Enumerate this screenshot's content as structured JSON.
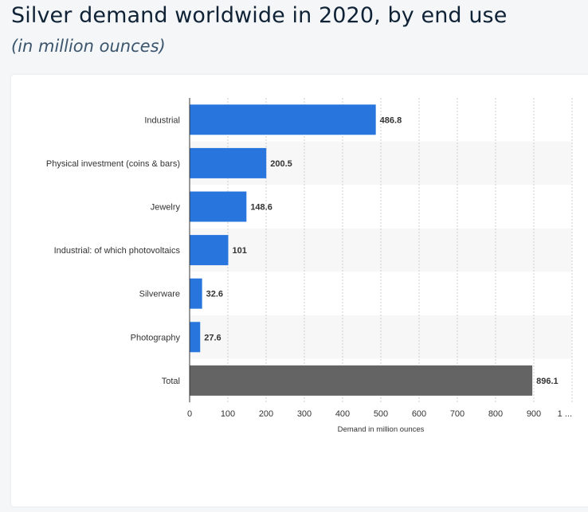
{
  "header": {
    "title": "Silver demand worldwide in 2020, by end use",
    "subtitle": "(in million ounces)"
  },
  "chart_data": {
    "type": "bar",
    "orientation": "horizontal",
    "title": "Silver demand worldwide in 2020, by end use",
    "subtitle": "(in million ounces)",
    "xlabel": "Demand in million ounces",
    "ylabel": "",
    "categories": [
      "Industrial",
      "Physical investment (coins & bars)",
      "Jewelry",
      "Industrial: of which photovoltaics",
      "Silverware",
      "Photography",
      "Total"
    ],
    "values": [
      486.8,
      200.5,
      148.6,
      101,
      32.6,
      27.6,
      896.1
    ],
    "value_labels": [
      "486.8",
      "200.5",
      "148.6",
      "101",
      "32.6",
      "27.6",
      "896.1"
    ],
    "xlim": [
      0,
      1000
    ],
    "ticks": [
      "0",
      "100",
      "200",
      "300",
      "400",
      "500",
      "600",
      "700",
      "800",
      "900",
      "1 ..."
    ],
    "grid": true,
    "colors": {
      "bar": "#2876dd",
      "total_bar": "#646464",
      "alt_row": "#f7f7f7",
      "grid": "#cfcfcf"
    }
  }
}
